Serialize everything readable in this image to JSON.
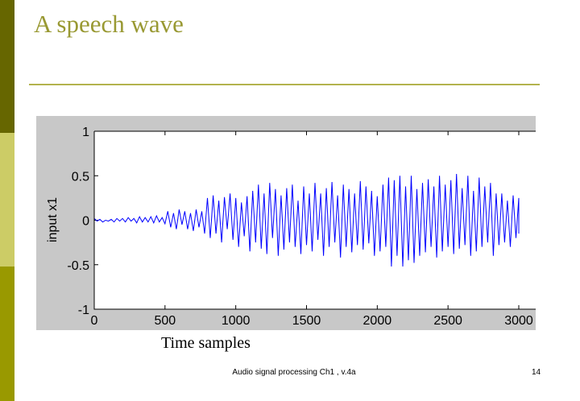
{
  "slide": {
    "title": "A speech wave",
    "footer": "Audio signal processing Ch1 , v.4a",
    "page_number": "14",
    "colors": {
      "title": "#999933",
      "bar_top": "#666600",
      "bar_mid": "#cccc66",
      "bar_bottom": "#999900",
      "series": "#0000ff",
      "figure_bg": "#c8c8c8"
    }
  },
  "chart_data": {
    "type": "line",
    "title": "",
    "xlabel": "Time samples",
    "ylabel": "input x1",
    "xlim": [
      0,
      3000
    ],
    "ylim": [
      -1,
      1
    ],
    "xticks": [
      "0",
      "500",
      "1000",
      "1500",
      "2000",
      "2500",
      "3000"
    ],
    "yticks": [
      "1",
      "0.5",
      "0",
      "-0.5",
      "-1"
    ],
    "grid": false,
    "x_step": 20,
    "series": [
      {
        "color": "#0000ff",
        "values": [
          0.02,
          -0.01,
          0.01,
          -0.02,
          0.0,
          -0.01,
          0.01,
          -0.02,
          0.02,
          -0.01,
          0.02,
          -0.02,
          0.03,
          -0.01,
          0.02,
          -0.03,
          0.04,
          -0.02,
          0.03,
          -0.02,
          0.04,
          -0.03,
          0.05,
          -0.02,
          0.03,
          -0.04,
          0.1,
          -0.08,
          0.08,
          -0.1,
          0.12,
          -0.05,
          0.1,
          -0.1,
          0.08,
          -0.12,
          0.12,
          -0.08,
          0.1,
          -0.15,
          0.25,
          -0.2,
          0.28,
          -0.15,
          0.22,
          -0.25,
          0.26,
          -0.1,
          0.3,
          -0.22,
          0.25,
          -0.3,
          0.2,
          -0.18,
          0.27,
          -0.35,
          0.33,
          -0.25,
          0.4,
          -0.32,
          0.3,
          -0.38,
          0.42,
          -0.2,
          0.35,
          -0.4,
          0.28,
          -0.33,
          0.36,
          -0.25,
          0.4,
          -0.3,
          0.22,
          -0.38,
          0.38,
          -0.28,
          0.3,
          -0.35,
          0.42,
          -0.22,
          0.3,
          -0.4,
          0.36,
          -0.3,
          0.43,
          -0.25,
          0.28,
          -0.42,
          0.4,
          -0.3,
          0.35,
          -0.36,
          0.3,
          -0.28,
          0.44,
          -0.33,
          0.38,
          -0.26,
          0.33,
          -0.4,
          0.27,
          -0.35,
          0.4,
          -0.3,
          0.48,
          -0.52,
          0.45,
          -0.4,
          0.5,
          -0.52,
          0.38,
          -0.45,
          0.5,
          -0.48,
          0.35,
          -0.4,
          0.42,
          -0.36,
          0.46,
          -0.3,
          0.38,
          -0.42,
          0.5,
          -0.35,
          0.4,
          -0.3,
          0.45,
          -0.38,
          0.52,
          -0.32,
          0.36,
          -0.28,
          0.5,
          -0.4,
          0.33,
          -0.35,
          0.48,
          -0.3,
          0.38,
          -0.25,
          0.42,
          -0.4,
          0.3,
          -0.28,
          0.3,
          -0.25,
          0.22,
          -0.3,
          0.28,
          -0.2,
          0.25,
          -0.15,
          0.1,
          -0.12,
          0.1
        ]
      }
    ]
  }
}
